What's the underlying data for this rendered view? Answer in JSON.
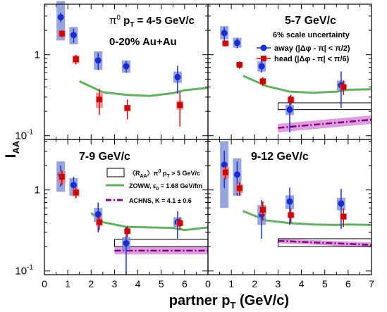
{
  "figure": {
    "ylabel_main": "I",
    "ylabel_sub": "AA",
    "xlabel_main": "partner p",
    "xlabel_sub": "T",
    "xlabel_unit": " (GeV/c)",
    "xlim": [
      0,
      7
    ],
    "ylim": [
      0.09,
      4.2
    ],
    "log_y": true,
    "x_ticks": [
      "0",
      "1",
      "2",
      "3",
      "4",
      "5",
      "6",
      "7"
    ],
    "y_tick_labels": [
      "10-1",
      "1"
    ],
    "colors": {
      "away": "#1a2bd6",
      "away_sys": "#7b8fd4",
      "head": "#cc0000",
      "head_sys": "#f08080",
      "zoww": "#5fb35f",
      "achns": "#800080",
      "achns_band": "#d98cd9"
    }
  },
  "chart_data": [
    {
      "type": "scatter",
      "panel": "top-left",
      "title_prefix": "π",
      "title_sup": "0",
      "title_mid": " p",
      "title_sub": "T",
      "title_suffix": " = 4-5 GeV/c",
      "subtitle": "0-20% Au+Au",
      "series": [
        {
          "name": "away",
          "points": [
            {
              "x": 0.7,
              "y": 2.9,
              "err": [
                0.4,
                0.4
              ],
              "sys": [
                1.5,
                4.6
              ]
            },
            {
              "x": 1.25,
              "y": 1.75,
              "err": [
                0.35,
                0.35
              ],
              "sys": [
                1.35,
                2.2
              ]
            },
            {
              "x": 2.3,
              "y": 0.85,
              "err": [
                0.2,
                0.2
              ],
              "sys": [
                0.65,
                1.1
              ]
            },
            {
              "x": 3.5,
              "y": 0.72,
              "err": [
                0.12,
                0.12
              ],
              "sys": [
                0.6,
                0.85
              ]
            },
            {
              "x": 5.7,
              "y": 0.53,
              "err": [
                0.2,
                0.2
              ],
              "sys": [
                0.45,
                0.62
              ]
            }
          ]
        },
        {
          "name": "head",
          "points": [
            {
              "x": 0.75,
              "y": 1.82,
              "err": [
                0.18,
                0.18
              ],
              "sys": [
                1.65,
                2.0
              ]
            },
            {
              "x": 1.35,
              "y": 0.88,
              "err": [
                0.12,
                0.12
              ],
              "sys": [
                0.78,
                0.98
              ]
            },
            {
              "x": 2.35,
              "y": 0.28,
              "err": [
                0.1,
                0.1
              ],
              "sys": [
                0.22,
                0.34
              ]
            },
            {
              "x": 3.55,
              "y": 0.22,
              "err": [
                0.06,
                0.06
              ],
              "sys": [
                0.2,
                0.24
              ]
            },
            {
              "x": 5.8,
              "y": 0.24,
              "err": [
                0.11,
                0.11
              ],
              "sys": [
                0.21,
                0.27
              ]
            }
          ]
        }
      ],
      "zoww": {
        "x": [
          1.5,
          2.5,
          3.5,
          4.5,
          5.5,
          6.0,
          7.0
        ],
        "y": [
          0.47,
          0.345,
          0.32,
          0.31,
          0.335,
          0.365,
          0.39
        ]
      }
    },
    {
      "type": "scatter",
      "panel": "top-right",
      "title": "5-7 GeV/c",
      "scale_note": "6% scale uncertainty",
      "legend": [
        {
          "series": "away",
          "text_main": "away (|Δφ - π| < π/2)"
        },
        {
          "series": "head",
          "text_main": "head (|Δφ - π| < π/6)"
        }
      ],
      "series": [
        {
          "name": "away",
          "points": [
            {
              "x": 0.7,
              "y": 1.85,
              "err": [
                0.35,
                0.35
              ],
              "sys": [
                1.55,
                2.25
              ]
            },
            {
              "x": 1.25,
              "y": 1.4,
              "err": [
                0.2,
                0.2
              ],
              "sys": [
                1.22,
                1.62
              ]
            },
            {
              "x": 2.3,
              "y": 0.72,
              "err": [
                0.12,
                0.12
              ],
              "sys": [
                0.62,
                0.83
              ]
            },
            {
              "x": 3.5,
              "y": 0.21,
              "err": [
                0.1,
                0.1
              ],
              "sys": [
                0.18,
                0.24
              ]
            },
            {
              "x": 5.7,
              "y": 0.42,
              "err": [
                0.2,
                0.2
              ],
              "sys": [
                0.36,
                0.48
              ]
            }
          ]
        },
        {
          "name": "head",
          "points": [
            {
              "x": 0.75,
              "y": 1.38,
              "err": [
                0.12,
                0.12
              ],
              "sys": [
                1.28,
                1.48
              ]
            },
            {
              "x": 1.35,
              "y": 0.75,
              "err": [
                0.08,
                0.08
              ],
              "sys": [
                0.7,
                0.8
              ]
            },
            {
              "x": 2.35,
              "y": 0.47,
              "err": [
                0.06,
                0.06
              ],
              "sys": [
                0.43,
                0.51
              ]
            },
            {
              "x": 3.55,
              "y": 0.28,
              "err": [
                0.04,
                0.04
              ],
              "sys": [
                0.26,
                0.3
              ]
            },
            {
              "x": 5.8,
              "y": 0.4,
              "err": [
                0.08,
                0.08
              ],
              "sys": [
                0.37,
                0.43
              ]
            }
          ]
        }
      ],
      "zoww": {
        "x": [
          1.5,
          2.5,
          3.5,
          4.5,
          5.5,
          6.0,
          7.0
        ],
        "y": [
          0.55,
          0.41,
          0.35,
          0.34,
          0.35,
          0.37,
          0.375
        ]
      },
      "raa_box": {
        "x": [
          3.0,
          7.0
        ],
        "y": [
          0.21,
          0.255
        ]
      },
      "achns": {
        "x": [
          3.0,
          7.0
        ],
        "y": [
          0.125,
          0.158
        ],
        "band": [
          0.11,
          0.14,
          0.14,
          0.178
        ]
      }
    },
    {
      "type": "scatter",
      "panel": "bottom-left",
      "title": "7-9 GeV/c",
      "legend": [
        {
          "kind": "box",
          "text_main": "〈R",
          "text_sub": "AA",
          "text_rest": "〉π",
          "text_sup": "0",
          "text_tail": " p",
          "text_sub2": "T",
          "text_end": " > 5 GeV/c"
        },
        {
          "kind": "line",
          "text_main": "ZOWW, ε",
          "text_sub": "0",
          "text_end": " = 1.68 GeV/fm"
        },
        {
          "kind": "dashdot",
          "text_main": "ACHNS, K = 4.1 ± 0.6"
        }
      ],
      "series": [
        {
          "name": "away",
          "points": [
            {
              "x": 0.7,
              "y": 1.55,
              "err": [
                0.45,
                0.45
              ],
              "sys": [
                0.95,
                2.25
              ]
            },
            {
              "x": 1.25,
              "y": 1.15,
              "err": [
                0.3,
                0.3
              ],
              "sys": [
                0.85,
                1.4
              ]
            },
            {
              "x": 2.3,
              "y": 0.5,
              "err": [
                0.2,
                0.2
              ],
              "sys": [
                0.4,
                0.6
              ]
            },
            {
              "x": 3.5,
              "y": 0.22,
              "err": [
                0.13,
                0.13
              ],
              "sys": [
                0.18,
                0.26
              ]
            },
            {
              "x": 5.7,
              "y": 0.4,
              "err": [
                0.15,
                0.15
              ],
              "sys": [
                0.35,
                0.46
              ]
            }
          ]
        },
        {
          "name": "head",
          "points": [
            {
              "x": 0.75,
              "y": 1.45,
              "err": [
                0.3,
                0.3
              ],
              "sys": [
                1.2,
                1.7
              ]
            },
            {
              "x": 1.35,
              "y": 0.93,
              "err": [
                0.14,
                0.14
              ],
              "sys": [
                0.83,
                1.03
              ]
            },
            {
              "x": 2.35,
              "y": 0.4,
              "err": [
                0.08,
                0.08
              ],
              "sys": [
                0.36,
                0.44
              ]
            },
            {
              "x": 3.55,
              "y": 0.31,
              "err": [
                0.05,
                0.05
              ],
              "sys": [
                0.29,
                0.33
              ]
            },
            {
              "x": 5.8,
              "y": 0.39,
              "err": [
                0.07,
                0.07
              ],
              "sys": [
                0.36,
                0.42
              ]
            }
          ]
        }
      ],
      "zoww": {
        "x": [
          2.0,
          2.5,
          3.5,
          4.5,
          5.5,
          6.0,
          7.0
        ],
        "y": [
          0.52,
          0.4,
          0.35,
          0.345,
          0.34,
          0.32,
          0.345
        ]
      },
      "raa_box": {
        "x": [
          3.0,
          7.0
        ],
        "y": [
          0.2,
          0.245
        ]
      },
      "achns": {
        "x": [
          3.0,
          7.0
        ],
        "y": [
          0.178,
          0.178
        ],
        "band": [
          0.16,
          0.16,
          0.198,
          0.198
        ]
      }
    },
    {
      "type": "scatter",
      "panel": "bottom-right",
      "title": "9-12 GeV/c",
      "series": [
        {
          "name": "away",
          "points": [
            {
              "x": 0.7,
              "y": 2.05,
              "err": [
                1.0,
                1.0
              ],
              "sys": [
                0.6,
                4.0
              ]
            },
            {
              "x": 1.25,
              "y": 1.55,
              "err": [
                0.7,
                0.7
              ],
              "sys": [
                0.85,
                2.45
              ]
            },
            {
              "x": 2.3,
              "y": 0.5,
              "err": [
                0.25,
                0.25
              ],
              "sys": [
                0.37,
                0.65
              ]
            },
            {
              "x": 3.5,
              "y": 0.72,
              "err": [
                0.35,
                0.35
              ],
              "sys": [
                0.58,
                0.86
              ]
            },
            {
              "x": 5.7,
              "y": 0.68,
              "err": [
                0.35,
                0.35
              ],
              "sys": [
                0.56,
                0.8
              ]
            }
          ]
        },
        {
          "name": "head",
          "points": [
            {
              "x": 0.75,
              "y": 1.65,
              "err": [
                0.3,
                0.3
              ],
              "sys": [
                1.4,
                1.9
              ]
            },
            {
              "x": 1.35,
              "y": 1.05,
              "err": [
                0.2,
                0.2
              ],
              "sys": [
                0.92,
                1.18
              ]
            },
            {
              "x": 2.35,
              "y": 0.57,
              "err": [
                0.15,
                0.15
              ],
              "sys": [
                0.5,
                0.64
              ]
            },
            {
              "x": 3.55,
              "y": 0.49,
              "err": [
                0.1,
                0.1
              ],
              "sys": [
                0.45,
                0.53
              ]
            },
            {
              "x": 5.8,
              "y": 0.47,
              "err": [
                0.12,
                0.12
              ],
              "sys": [
                0.43,
                0.51
              ]
            }
          ]
        }
      ],
      "zoww": {
        "x": [
          1.5,
          2.5,
          3.5,
          4.5,
          5.5,
          6.0,
          7.0
        ],
        "y": [
          0.55,
          0.42,
          0.39,
          0.375,
          0.37,
          0.375,
          0.37
        ]
      },
      "raa_box": {
        "x": [
          3.0,
          7.0
        ],
        "y": [
          0.2,
          0.25
        ]
      },
      "achns": {
        "x": [
          3.0,
          7.0
        ],
        "y": [
          0.235,
          0.21
        ],
        "band": [
          0.22,
          0.195,
          0.25,
          0.225
        ]
      }
    }
  ]
}
